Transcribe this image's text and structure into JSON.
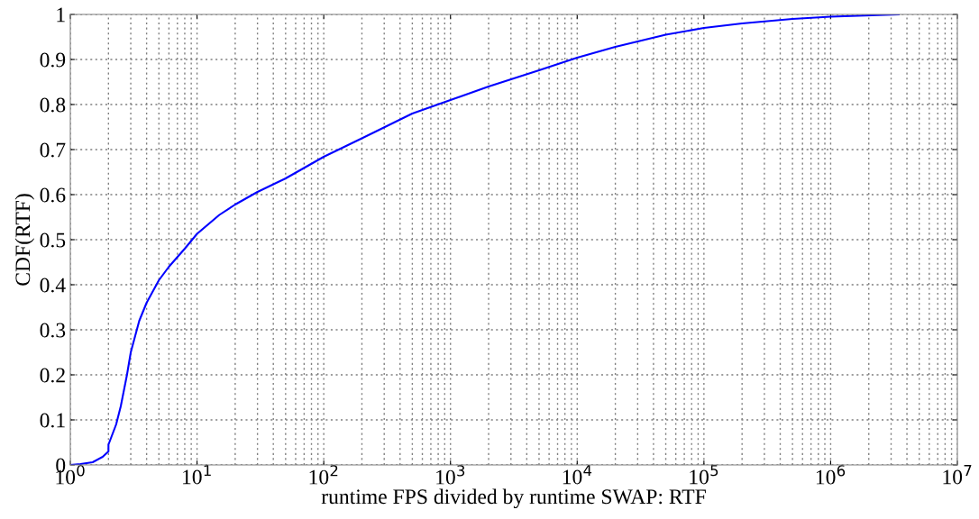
{
  "chart_data": {
    "type": "line",
    "xlabel": "runtime FPS divided by runtime SWAP: RTF",
    "ylabel": "CDF(RTF)",
    "series": [
      {
        "color": "#0000ff",
        "x": [
          1,
          1.2,
          1.5,
          1.8,
          2,
          2,
          2.3,
          2.5,
          2.8,
          3,
          3.5,
          4,
          5,
          6,
          8,
          10,
          15,
          20,
          30,
          50,
          100,
          200,
          500,
          1000,
          2000,
          5000,
          10000,
          20000,
          50000,
          100000,
          200000,
          500000,
          1000000,
          3450000
        ],
        "values": [
          0,
          0.002,
          0.006,
          0.018,
          0.03,
          0.045,
          0.09,
          0.13,
          0.2,
          0.25,
          0.32,
          0.36,
          0.41,
          0.44,
          0.48,
          0.513,
          0.555,
          0.578,
          0.606,
          0.636,
          0.684,
          0.725,
          0.78,
          0.81,
          0.84,
          0.876,
          0.904,
          0.928,
          0.955,
          0.97,
          0.98,
          0.99,
          0.995,
          1.0
        ]
      }
    ],
    "log": "x",
    "xlim": [
      1,
      10000000
    ],
    "ylim": [
      0,
      1
    ],
    "xticks": [
      {
        "value": 1,
        "label": "10$^{0}$"
      },
      {
        "value": 10,
        "label": "10$^{1}$"
      },
      {
        "value": 100,
        "label": "10$^{2}$"
      },
      {
        "value": 1000,
        "label": "10$^{3}$"
      },
      {
        "value": 10000,
        "label": "10$^{4}$"
      },
      {
        "value": 100000,
        "label": "10$^{5}$"
      },
      {
        "value": 1000000,
        "label": "10$^{6}$"
      },
      {
        "value": 10000000,
        "label": "10$^{7}$"
      }
    ],
    "yticks": [
      0,
      0.1,
      0.2,
      0.3,
      0.4,
      0.5,
      0.6,
      0.7,
      0.8,
      0.9,
      1
    ],
    "grid": true,
    "line_style": "solid",
    "marker": "none"
  }
}
